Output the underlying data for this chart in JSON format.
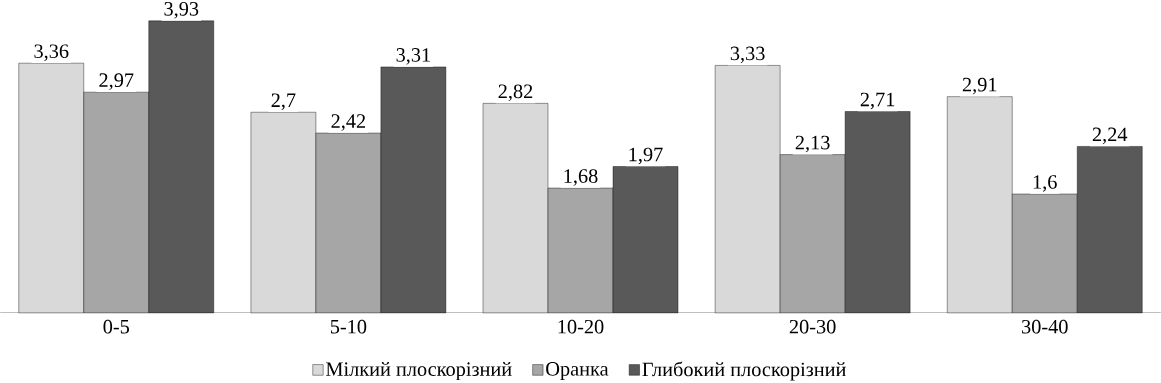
{
  "chart_data": {
    "type": "bar",
    "categories": [
      "0-5",
      "5-10",
      "10-20",
      "20-30",
      "30-40"
    ],
    "series": [
      {
        "name": "Мілкий плоскорізний",
        "color": "#d9d9d9",
        "values": [
          3.36,
          2.7,
          2.82,
          3.33,
          2.91
        ],
        "value_labels": [
          "3,36",
          "2,7",
          "2,82",
          "3,33",
          "2,91"
        ]
      },
      {
        "name": "Оранка",
        "color": "#a6a6a6",
        "values": [
          2.97,
          2.42,
          1.68,
          2.13,
          1.6
        ],
        "value_labels": [
          "2,97",
          "2,42",
          "1,68",
          "2,13",
          "1,6"
        ]
      },
      {
        "name": "Глибокий плоскорізний",
        "color": "#595959",
        "values": [
          3.93,
          3.31,
          1.97,
          2.71,
          2.24
        ],
        "value_labels": [
          "3,93",
          "3,31",
          "1,97",
          "2,71",
          "2,24"
        ]
      }
    ],
    "tick_labels": "x",
    "legend": "bottom"
  }
}
